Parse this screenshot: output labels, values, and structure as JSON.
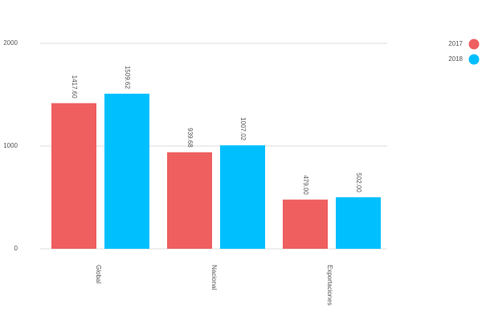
{
  "chart_data": {
    "type": "bar",
    "categories": [
      "Global",
      "Nacional",
      "Exportaciones"
    ],
    "series": [
      {
        "name": "2017",
        "color": "#ef5f5f",
        "values": [
          1417.6,
          939.68,
          479
        ],
        "value_labels": [
          "1417.60",
          "939.68",
          "479.00"
        ]
      },
      {
        "name": "2018",
        "color": "#00bfff",
        "values": [
          1509.62,
          1007.02,
          502
        ],
        "value_labels": [
          "1509.62",
          "1007.02",
          "502.00"
        ]
      }
    ],
    "ylim": [
      0,
      2000
    ],
    "yticks": [
      0,
      1000,
      2000
    ],
    "grid": true,
    "legend": "top-right"
  }
}
